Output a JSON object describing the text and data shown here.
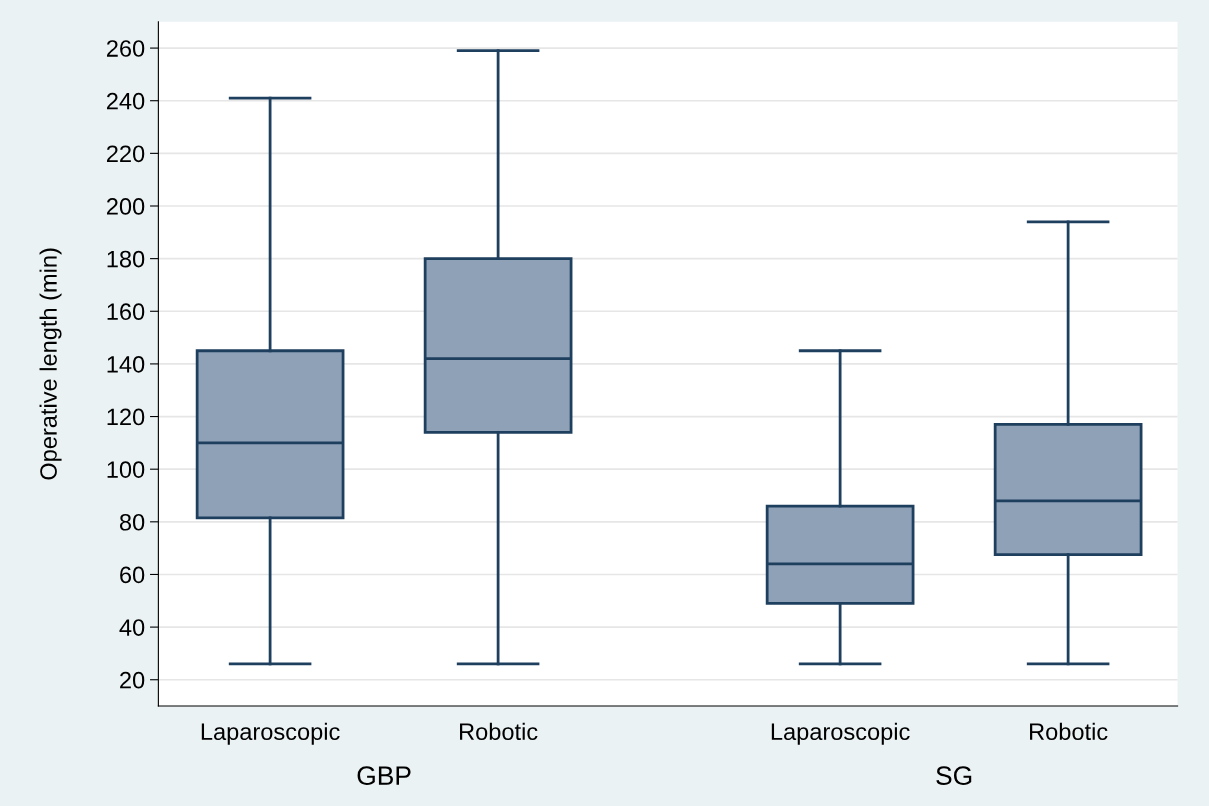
{
  "chart_data": {
    "type": "box",
    "ylabel": "Operative length (min)",
    "categories": [
      "Laparoscopic",
      "Robotic",
      "Laparoscopic",
      "Robotic"
    ],
    "annotations": [
      "GBP",
      "SG"
    ],
    "boxes": [
      {
        "low": 26,
        "q1": 81.5,
        "median": 110,
        "q3": 145,
        "high": 241
      },
      {
        "low": 26,
        "q1": 114,
        "median": 142,
        "q3": 180,
        "high": 259
      },
      {
        "low": 26,
        "q1": 49,
        "median": 64,
        "q3": 86,
        "high": 145
      },
      {
        "low": 26,
        "q1": 67.5,
        "median": 88,
        "q3": 117,
        "high": 194
      }
    ],
    "color": "#8fa1b6",
    "ylim": [
      10,
      270
    ],
    "yticks": [
      20,
      40,
      60,
      80,
      100,
      120,
      140,
      160,
      180,
      200,
      220,
      240,
      260
    ],
    "grid": "y"
  }
}
